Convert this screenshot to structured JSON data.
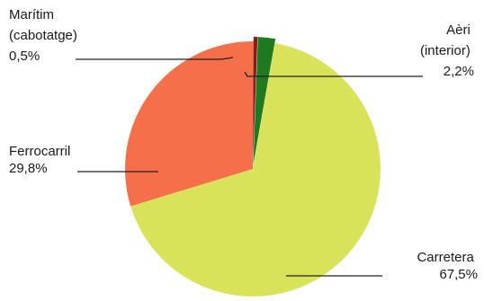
{
  "chart_data": {
    "type": "pie",
    "title": "",
    "colors": {
      "Carretera": "#d9e35a",
      "Ferrocarril": "#f46f4a",
      "Marítim (cabotatge)": "#8b1a1a",
      "Aèri (interior)": "#1f7a1f"
    },
    "slices": [
      {
        "name": "Carretera",
        "value": 67.5,
        "display": "67,5%",
        "label_lines": [
          "Carretera",
          "67,5%"
        ],
        "color": "#d9e35a",
        "exploded": false
      },
      {
        "name": "Ferrocarril",
        "value": 29.8,
        "display": "29,8%",
        "label_lines": [
          "Ferrocarril",
          "29,8%"
        ],
        "color": "#f46f4a",
        "exploded": false
      },
      {
        "name": "Marítim (cabotatge)",
        "value": 0.5,
        "display": "0,5%",
        "label_lines": [
          "Marítim",
          "(cabotatge)",
          "0,5%"
        ],
        "color": "#8b1a1a",
        "exploded": true
      },
      {
        "name": "Aèri (interior)",
        "value": 2.2,
        "display": "2,2%",
        "label_lines": [
          "Aèri",
          "(interior)",
          "2,2%"
        ],
        "color": "#1f7a1f",
        "exploded": true
      }
    ]
  }
}
